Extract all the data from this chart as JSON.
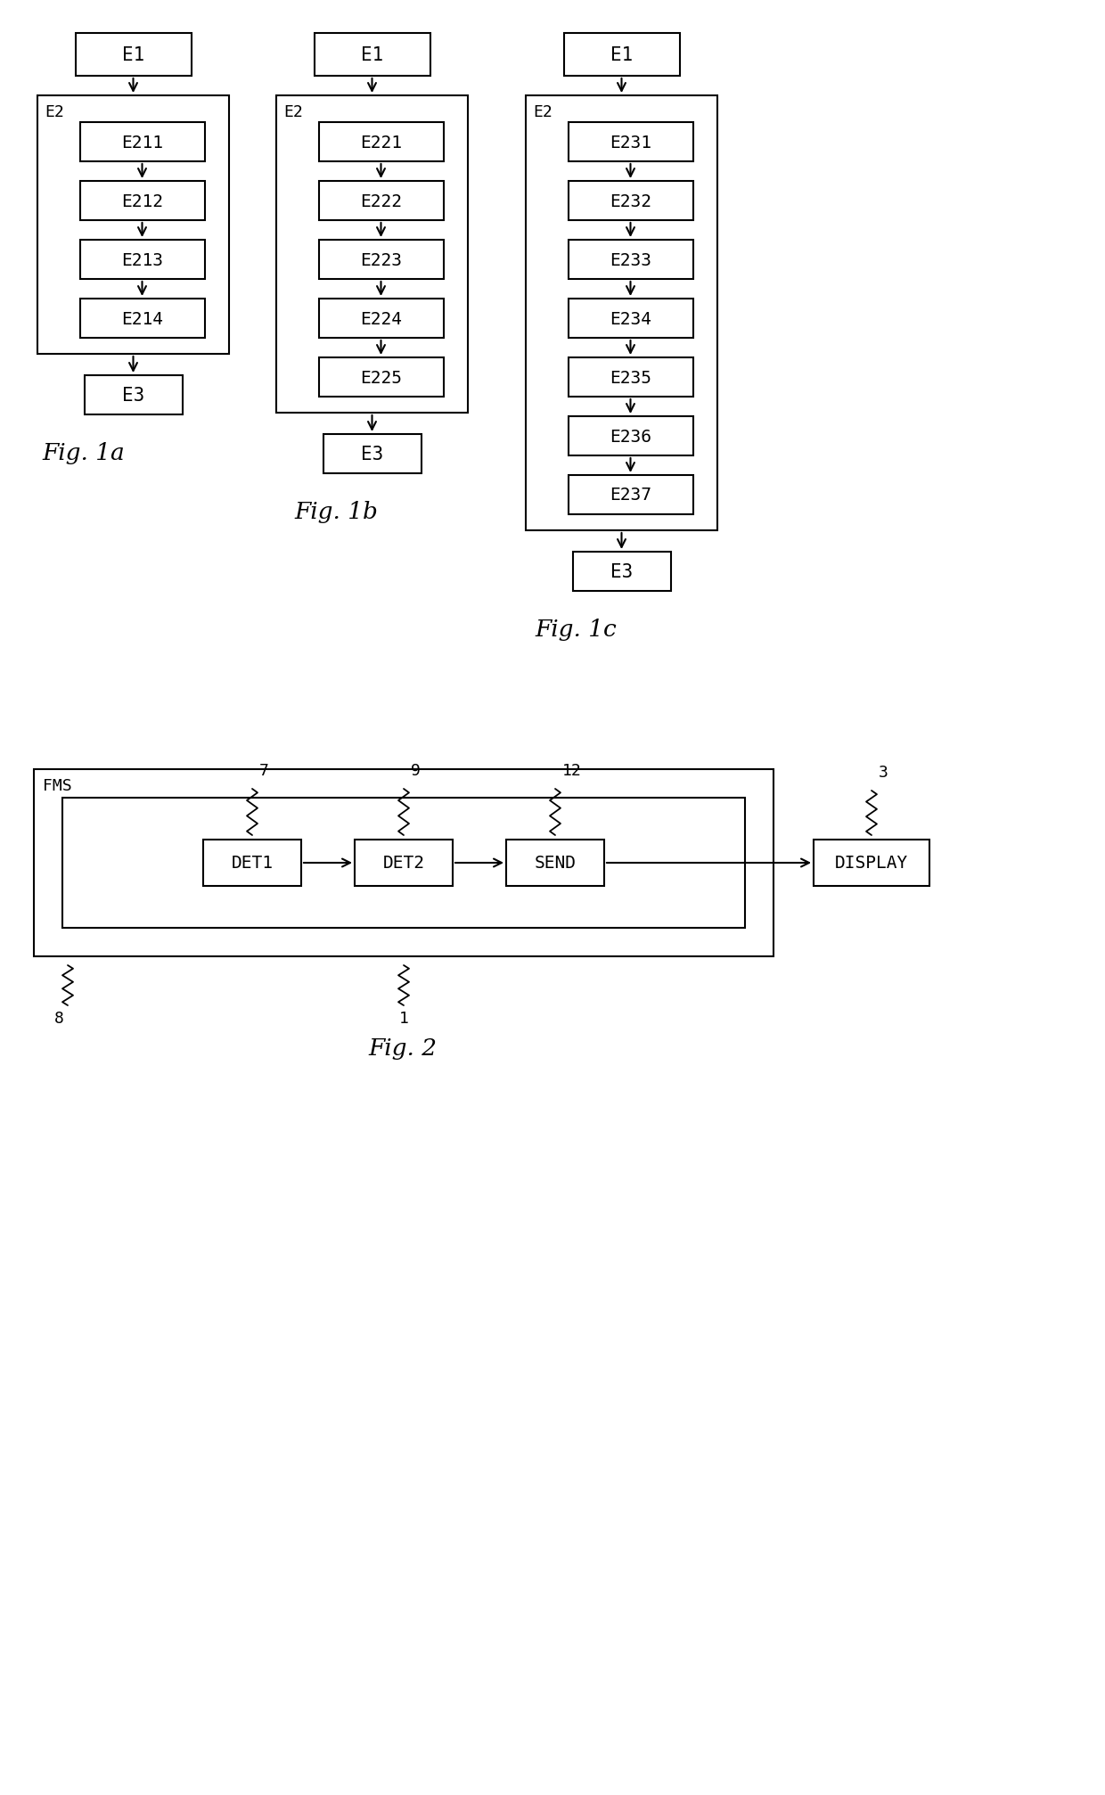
{
  "fig_title_a": "Fig. 1a",
  "fig_title_b": "Fig. 1b",
  "fig_title_c": "Fig. 1c",
  "fig_title_2": "Fig. 2",
  "bg_color": "#ffffff",
  "fig1a": {
    "e1": "E1",
    "e2_label": "E2",
    "steps": [
      "E211",
      "E212",
      "E213",
      "E214"
    ],
    "e3": "E3"
  },
  "fig1b": {
    "e1": "E1",
    "e2_label": "E2",
    "steps": [
      "E221",
      "E222",
      "E223",
      "E224",
      "E225"
    ],
    "e3": "E3"
  },
  "fig1c": {
    "e1": "E1",
    "e2_label": "E2",
    "steps": [
      "E231",
      "E232",
      "E233",
      "E234",
      "E235",
      "E236",
      "E237"
    ],
    "e3": "E3"
  },
  "fig2": {
    "outer_label": "FMS",
    "inner_boxes": [
      "DET1",
      "DET2",
      "SEND"
    ],
    "outer_box": "DISPLAY",
    "labels_above_inner": [
      "7",
      "9",
      "12"
    ],
    "label_above_display": "3",
    "label_8": "8",
    "label_1": "1"
  }
}
